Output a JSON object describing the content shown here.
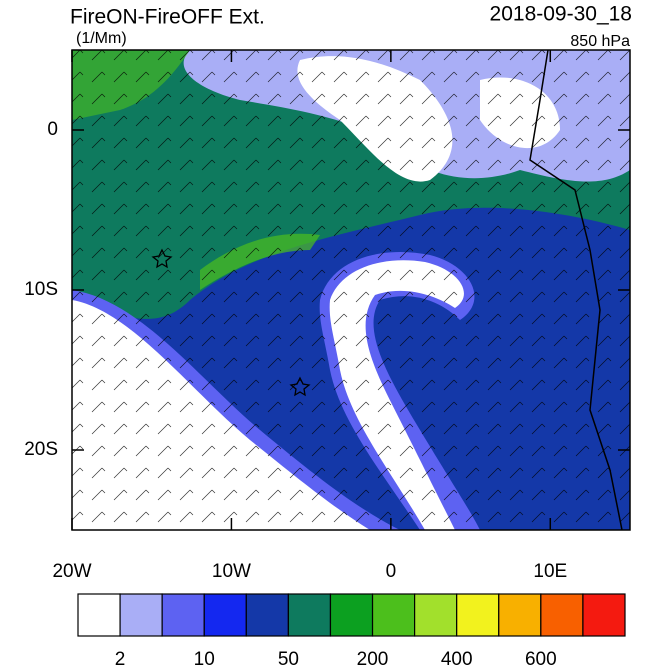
{
  "chart_data": {
    "type": "map",
    "title": "FireON-FireOFF Ext.",
    "units": "(1/Mm)",
    "date": "2018-09-30_18",
    "level": "850 hPa",
    "xlim": [
      -20,
      15
    ],
    "ylim": [
      -25,
      5
    ],
    "xticks": [
      {
        "value": -20,
        "label": "20W"
      },
      {
        "value": -10,
        "label": "10W"
      },
      0,
      {
        "value": 10,
        "label": "10E"
      }
    ],
    "yticks": [
      0,
      {
        "value": -10,
        "label": "10S"
      },
      {
        "value": -20,
        "label": "20S"
      }
    ],
    "colorbar": {
      "colors": [
        "#ffffff",
        "#a9aef6",
        "#5d62f2",
        "#1428f0",
        "#1438a8",
        "#0e7a5e",
        "#0ca020",
        "#4cbf1c",
        "#a2e02c",
        "#f2f21e",
        "#f8b000",
        "#f86000",
        "#f41a10"
      ],
      "labels": [
        2,
        10,
        50,
        200,
        400,
        600
      ]
    }
  }
}
